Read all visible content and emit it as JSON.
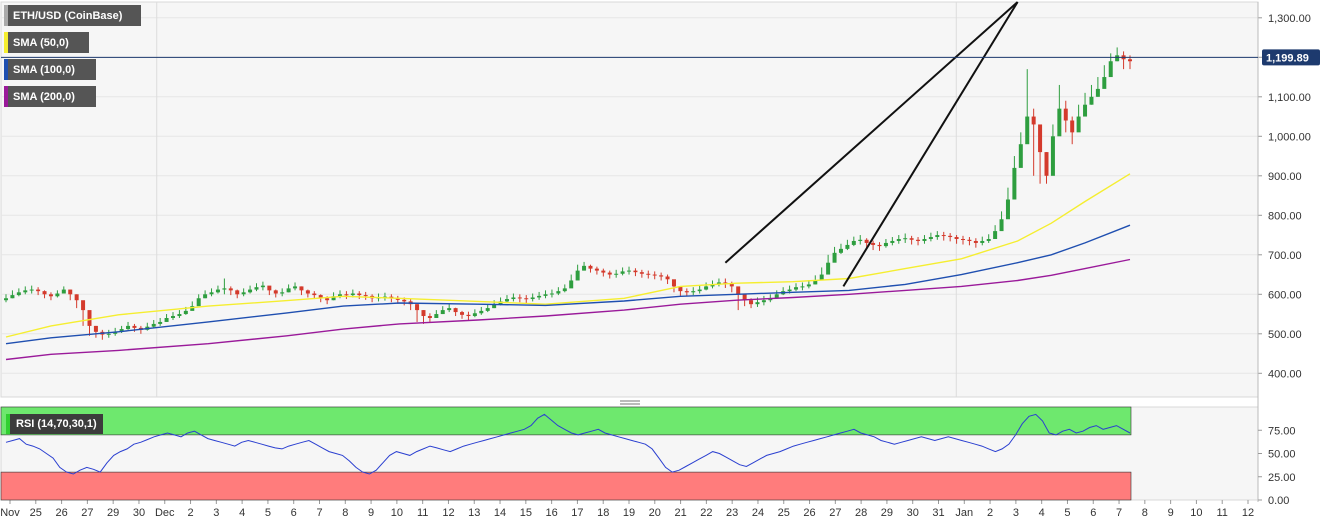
{
  "chart_data": [
    {
      "type": "candlestick",
      "title": "ETH/USD (CoinBase)",
      "ylim": [
        340,
        1340
      ],
      "y_ticks": [
        400,
        500,
        600,
        700,
        800,
        900,
        1000,
        1100,
        1200,
        1300
      ],
      "y_tick_labels": [
        "400.00",
        "500.00",
        "600.00",
        "700.00",
        "800.00",
        "900.00",
        "1,000.00",
        "1,100.00",
        "1,200.00",
        "1,300.00"
      ],
      "x_tick_labels": [
        "Nov",
        "25",
        "26",
        "27",
        "29",
        "30",
        "Dec",
        "2",
        "3",
        "4",
        "5",
        "6",
        "7",
        "8",
        "9",
        "10",
        "11",
        "12",
        "13",
        "14",
        "15",
        "16",
        "17",
        "18",
        "19",
        "20",
        "21",
        "22",
        "23",
        "24",
        "25",
        "26",
        "27",
        "28",
        "29",
        "30",
        "31",
        "Jan",
        "2",
        "3",
        "4",
        "5",
        "6",
        "7",
        "8",
        "9",
        "10",
        "11",
        "12"
      ],
      "last_price": 1199.89,
      "last_price_label": "1,199.89",
      "close_series": [
        590,
        598,
        605,
        610,
        612,
        608,
        600,
        595,
        602,
        612,
        600,
        585,
        560,
        520,
        505,
        498,
        500,
        505,
        512,
        520,
        515,
        510,
        518,
        525,
        530,
        540,
        545,
        550,
        558,
        570,
        590,
        600,
        605,
        612,
        615,
        610,
        600,
        605,
        612,
        618,
        622,
        610,
        602,
        605,
        615,
        620,
        610,
        602,
        598,
        590,
        585,
        595,
        600,
        598,
        602,
        598,
        596,
        590,
        592,
        594,
        590,
        586,
        582,
        575,
        560,
        545,
        540,
        550,
        560,
        565,
        555,
        548,
        545,
        552,
        558,
        565,
        575,
        582,
        588,
        592,
        590,
        588,
        592,
        596,
        600,
        602,
        608,
        615,
        635,
        660,
        672,
        665,
        660,
        655,
        650,
        652,
        658,
        660,
        656,
        652,
        650,
        648,
        645,
        638,
        620,
        608,
        605,
        608,
        612,
        620,
        625,
        630,
        628,
        620,
        600,
        585,
        575,
        580,
        585,
        590,
        600,
        608,
        612,
        618,
        620,
        625,
        635,
        650,
        680,
        705,
        715,
        725,
        735,
        738,
        730,
        725,
        722,
        730,
        735,
        740,
        742,
        738,
        735,
        740,
        745,
        750,
        748,
        745,
        740,
        738,
        735,
        730,
        735,
        740,
        760,
        790,
        840,
        920,
        980,
        1050,
        1030,
        960,
        900,
        1000,
        1070,
        1040,
        1010,
        1050,
        1080,
        1100,
        1120,
        1150,
        1190,
        1205,
        1195,
        1190
      ],
      "high_series": [
        600,
        610,
        615,
        620,
        622,
        618,
        610,
        605,
        610,
        620,
        612,
        600,
        580,
        540,
        520,
        510,
        510,
        515,
        520,
        530,
        525,
        520,
        528,
        535,
        540,
        550,
        555,
        560,
        568,
        582,
        600,
        610,
        615,
        622,
        640,
        620,
        612,
        615,
        622,
        628,
        632,
        620,
        612,
        615,
        625,
        630,
        620,
        612,
        608,
        600,
        595,
        605,
        610,
        608,
        612,
        608,
        606,
        600,
        602,
        604,
        600,
        596,
        592,
        588,
        575,
        560,
        552,
        560,
        570,
        575,
        566,
        558,
        556,
        562,
        568,
        575,
        585,
        592,
        598,
        602,
        600,
        598,
        602,
        606,
        610,
        612,
        618,
        625,
        650,
        675,
        682,
        675,
        670,
        665,
        660,
        662,
        668,
        670,
        666,
        662,
        660,
        658,
        655,
        650,
        632,
        620,
        615,
        618,
        622,
        630,
        635,
        640,
        640,
        632,
        614,
        600,
        590,
        592,
        596,
        600,
        610,
        618,
        622,
        628,
        630,
        636,
        648,
        668,
        700,
        720,
        728,
        738,
        746,
        750,
        742,
        736,
        732,
        740,
        745,
        750,
        754,
        748,
        745,
        750,
        756,
        760,
        758,
        755,
        750,
        748,
        745,
        742,
        746,
        752,
        775,
        810,
        870,
        950,
        1010,
        1170,
        1070,
        1000,
        960,
        1030,
        1130,
        1090,
        1050,
        1080,
        1110,
        1130,
        1150,
        1180,
        1210,
        1225,
        1215,
        1205
      ],
      "low_series": [
        580,
        590,
        595,
        600,
        602,
        598,
        590,
        585,
        592,
        602,
        585,
        565,
        520,
        495,
        490,
        485,
        490,
        495,
        502,
        510,
        505,
        500,
        508,
        515,
        520,
        530,
        535,
        540,
        548,
        560,
        580,
        590,
        595,
        602,
        600,
        598,
        590,
        595,
        602,
        608,
        610,
        598,
        592,
        595,
        605,
        610,
        598,
        592,
        588,
        580,
        575,
        585,
        590,
        588,
        592,
        588,
        586,
        580,
        582,
        584,
        580,
        576,
        572,
        560,
        530,
        525,
        530,
        540,
        550,
        555,
        545,
        538,
        535,
        542,
        548,
        555,
        565,
        572,
        578,
        582,
        580,
        578,
        582,
        586,
        590,
        592,
        598,
        605,
        625,
        648,
        660,
        655,
        650,
        645,
        640,
        642,
        648,
        650,
        646,
        642,
        640,
        638,
        635,
        626,
        605,
        596,
        595,
        598,
        602,
        610,
        615,
        620,
        616,
        605,
        560,
        570,
        565,
        568,
        572,
        580,
        590,
        598,
        602,
        608,
        610,
        615,
        625,
        640,
        668,
        690,
        702,
        712,
        722,
        726,
        718,
        712,
        710,
        718,
        724,
        728,
        730,
        726,
        724,
        728,
        734,
        738,
        736,
        734,
        728,
        726,
        724,
        718,
        724,
        730,
        748,
        775,
        825,
        900,
        960,
        1000,
        900,
        880,
        880,
        980,
        1040,
        1010,
        980,
        1030,
        1060,
        1080,
        1100,
        1130,
        1170,
        1190,
        1170,
        1170
      ],
      "series": [
        {
          "name": "SMA (50,0)",
          "color": "#f5ee30",
          "x_frac": [
            0,
            0.04,
            0.1,
            0.18,
            0.25,
            0.3,
            0.35,
            0.42,
            0.48,
            0.55,
            0.6,
            0.65,
            0.7,
            0.75,
            0.8,
            0.85,
            0.9,
            0.93,
            0.96,
            1.0
          ],
          "values": [
            492,
            520,
            548,
            570,
            584,
            595,
            590,
            582,
            575,
            590,
            620,
            628,
            632,
            640,
            665,
            690,
            735,
            780,
            835,
            905
          ]
        },
        {
          "name": "SMA (100,0)",
          "color": "#1f4fb0",
          "x_frac": [
            0,
            0.04,
            0.1,
            0.18,
            0.25,
            0.3,
            0.35,
            0.42,
            0.48,
            0.55,
            0.6,
            0.65,
            0.7,
            0.75,
            0.8,
            0.85,
            0.9,
            0.93,
            0.96,
            1.0
          ],
          "values": [
            475,
            490,
            505,
            530,
            553,
            570,
            578,
            575,
            572,
            583,
            595,
            600,
            605,
            610,
            625,
            650,
            680,
            700,
            730,
            775
          ]
        },
        {
          "name": "SMA (200,0)",
          "color": "#9a1a9a",
          "x_frac": [
            0,
            0.04,
            0.1,
            0.18,
            0.25,
            0.3,
            0.35,
            0.42,
            0.48,
            0.55,
            0.6,
            0.65,
            0.7,
            0.75,
            0.8,
            0.85,
            0.9,
            0.93,
            0.96,
            1.0
          ],
          "values": [
            435,
            448,
            458,
            475,
            495,
            512,
            525,
            535,
            545,
            560,
            575,
            585,
            592,
            600,
            610,
            620,
            635,
            648,
            665,
            688
          ]
        }
      ],
      "trendlines": [
        {
          "from": {
            "x_frac": 0.64,
            "y": 680
          },
          "to": {
            "x_frac": 0.9,
            "y": 1340
          }
        },
        {
          "from": {
            "x_frac": 0.745,
            "y": 620
          },
          "to": {
            "x_frac": 0.9,
            "y": 1340
          }
        }
      ]
    },
    {
      "type": "line",
      "title": "RSI (14,70,30,1)",
      "ylim": [
        0,
        100
      ],
      "y_ticks": [
        0,
        25,
        50,
        75
      ],
      "y_tick_labels": [
        "0.00",
        "25.00",
        "50.00",
        "75.00"
      ],
      "overbought": 70,
      "oversold": 30,
      "series": [
        {
          "name": "RSI",
          "color": "#2a3fd0",
          "values": [
            62,
            64,
            66,
            60,
            58,
            55,
            50,
            45,
            35,
            30,
            28,
            32,
            35,
            33,
            30,
            40,
            48,
            52,
            55,
            60,
            62,
            65,
            68,
            70,
            72,
            70,
            68,
            72,
            74,
            70,
            66,
            64,
            62,
            60,
            58,
            62,
            64,
            62,
            60,
            58,
            56,
            55,
            58,
            60,
            62,
            64,
            60,
            56,
            52,
            50,
            48,
            42,
            35,
            30,
            28,
            32,
            40,
            48,
            52,
            50,
            48,
            52,
            55,
            58,
            56,
            54,
            52,
            55,
            58,
            60,
            62,
            64,
            66,
            68,
            70,
            72,
            74,
            76,
            80,
            88,
            92,
            86,
            80,
            76,
            72,
            70,
            72,
            74,
            76,
            72,
            70,
            68,
            66,
            64,
            62,
            60,
            55,
            45,
            35,
            30,
            32,
            36,
            40,
            44,
            48,
            52,
            50,
            46,
            42,
            38,
            36,
            40,
            44,
            48,
            50,
            52,
            55,
            58,
            60,
            62,
            64,
            66,
            68,
            70,
            72,
            74,
            76,
            72,
            70,
            68,
            64,
            62,
            60,
            62,
            64,
            66,
            68,
            66,
            64,
            66,
            68,
            66,
            64,
            62,
            60,
            58,
            55,
            52,
            55,
            60,
            70,
            82,
            90,
            92,
            85,
            72,
            70,
            74,
            76,
            72,
            74,
            78,
            80,
            76,
            78,
            80,
            76,
            72
          ]
        }
      ]
    }
  ],
  "legend": {
    "title": "ETH/USD (CoinBase)",
    "sma50": "SMA (50,0)",
    "sma100": "SMA (100,0)",
    "sma200": "SMA (200,0)",
    "rsi": "RSI (14,70,30,1)"
  },
  "colors": {
    "bull": "#2e9e3f",
    "bear": "#d43a2c",
    "overbought_fill": "#6ee86e",
    "oversold_fill": "#ff7c7c",
    "price_tag": "#1d3a6e"
  }
}
